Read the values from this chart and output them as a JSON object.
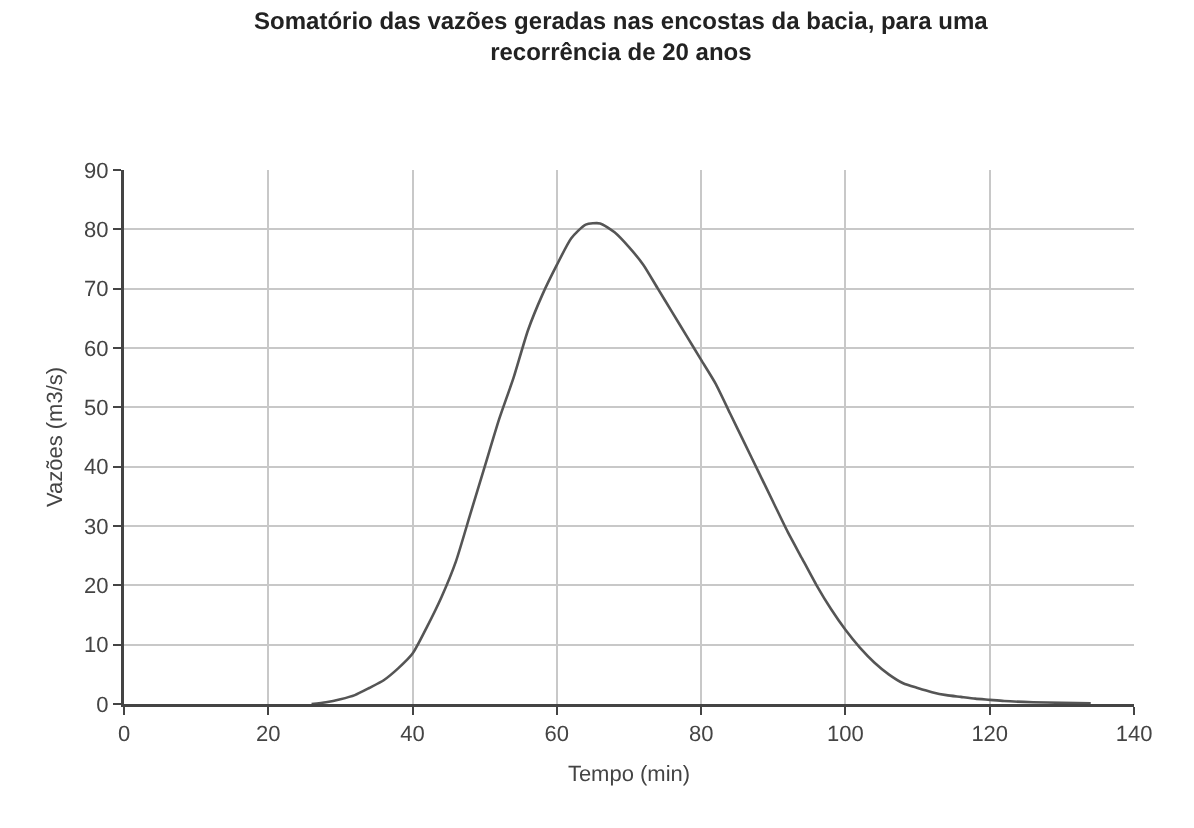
{
  "chart_data": {
    "type": "line",
    "title": "Somatório das vazões geradas nas encostas da bacia, para uma\nrecorrência de 20 anos",
    "xlabel": "Tempo (min)",
    "ylabel": "Vazões (m3/s)",
    "x": [
      26,
      28,
      30,
      32,
      34,
      36,
      38,
      40,
      42,
      44,
      46,
      48,
      50,
      52,
      54,
      56,
      58,
      60,
      62,
      64,
      66,
      68,
      70,
      72,
      74,
      76,
      78,
      80,
      82,
      84,
      86,
      88,
      90,
      92,
      94,
      96,
      98,
      100,
      102,
      104,
      106,
      108,
      110,
      112,
      114,
      116,
      118,
      120,
      122,
      126,
      130,
      134
    ],
    "series": [
      {
        "color": "#555555",
        "values": [
          0,
          0.3,
          0.8,
          1.5,
          2.7,
          4,
          6,
          8.5,
          13,
          18,
          24,
          32,
          40,
          48,
          55,
          63,
          69,
          74,
          78.5,
          80.8,
          81,
          79.5,
          77,
          74,
          70,
          66,
          62,
          58,
          54,
          49,
          44,
          39,
          34,
          29,
          24.5,
          20,
          16,
          12.5,
          9.5,
          7,
          5,
          3.5,
          2.7,
          2,
          1.5,
          1.2,
          0.9,
          0.7,
          0.5,
          0.3,
          0.2,
          0.1
        ]
      }
    ],
    "xlim": [
      0,
      140
    ],
    "xticks": [
      0,
      20,
      40,
      60,
      80,
      100,
      120,
      140
    ],
    "ylim": [
      0,
      90
    ],
    "yticks": [
      0,
      10,
      20,
      30,
      40,
      50,
      60,
      70,
      80,
      90
    ],
    "grid": true,
    "marker": "none",
    "line_style": "solid"
  }
}
